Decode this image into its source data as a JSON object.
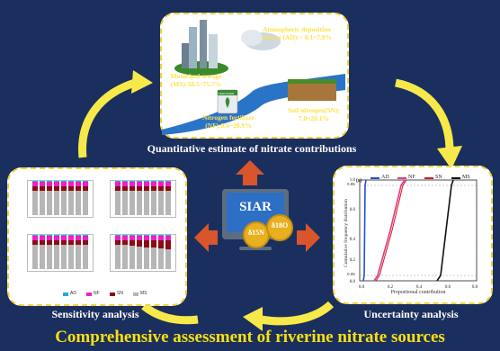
{
  "top_panel": {
    "title": "Quantitative estimate of nitrate contributions",
    "labels": {
      "ms": "Municipal sewage (MS):58.5~75.7%",
      "ad": "Atmospheric deposition nitrate (AD):< 0.1~7.9%",
      "nf": "Nitrogen fertilizer (NF):8.6~20.9%",
      "sn": "Soil nitrogen(SN): 7.8~20.1%",
      "fertilizer_bag": "FERTILIZER"
    }
  },
  "center": {
    "label": "SIAR",
    "isotope_1": "δ15N",
    "isotope_2": "δ18O"
  },
  "left_panel": {
    "title": "Sensitivity analysis",
    "legend": [
      "AD",
      "NF",
      "SN",
      "MS"
    ],
    "colors": {
      "AD": "#1fa9e0",
      "NF": "#ec20c8",
      "SN": "#8b0d12",
      "MS": "#b6b6b6"
    }
  },
  "right_panel": {
    "title": "Uncertainty analysis",
    "panel_tag": "(a)",
    "ylabel": "Cumulative frequency distribution",
    "xlabel": "Proportional contribution",
    "legend": [
      "AD",
      "NF",
      "SN",
      "MS"
    ],
    "colors": {
      "AD": "#1f4fd6",
      "NF": "#e03a8a",
      "SN": "#d81818",
      "MS": "#111111"
    },
    "ytick_95": "0.95",
    "ytick_05": "0.05"
  },
  "caption": "Comprehensive assessment of riverine nitrate sources"
}
